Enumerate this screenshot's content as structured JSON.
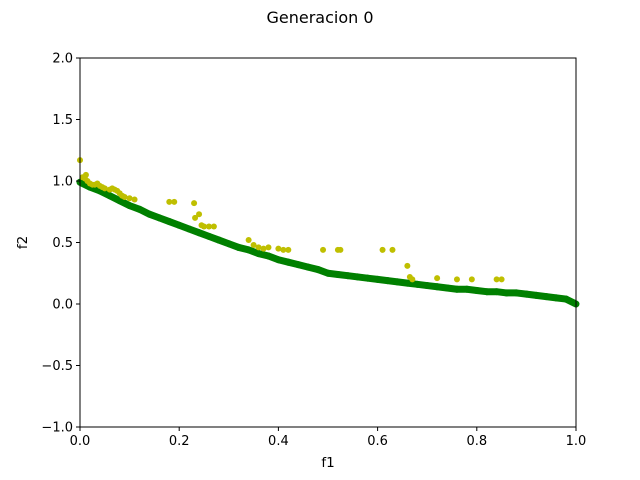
{
  "chart_data": {
    "type": "scatter",
    "title": "Generacion 0",
    "xlabel": "f1",
    "ylabel": "f2",
    "xlim": [
      0.0,
      1.0
    ],
    "ylim": [
      -1.0,
      2.0
    ],
    "xticks": [
      0.0,
      0.2,
      0.4,
      0.6,
      0.8,
      1.0
    ],
    "xtick_labels": [
      "0.0",
      "0.2",
      "0.4",
      "0.6",
      "0.8",
      "1.0"
    ],
    "yticks": [
      -1.0,
      -0.5,
      0.0,
      0.5,
      1.0,
      1.5,
      2.0
    ],
    "ytick_labels": [
      "−1.0",
      "−0.5",
      "0.0",
      "0.5",
      "1.0",
      "1.5",
      "2.0"
    ],
    "grid": false,
    "series": [
      {
        "color": "#008000",
        "marker": "dense-line",
        "x": [
          0.0,
          0.02,
          0.04,
          0.06,
          0.08,
          0.1,
          0.12,
          0.14,
          0.16,
          0.18,
          0.2,
          0.22,
          0.24,
          0.26,
          0.28,
          0.3,
          0.32,
          0.34,
          0.36,
          0.38,
          0.4,
          0.42,
          0.44,
          0.46,
          0.48,
          0.5,
          0.52,
          0.54,
          0.56,
          0.58,
          0.6,
          0.62,
          0.64,
          0.66,
          0.68,
          0.7,
          0.72,
          0.74,
          0.76,
          0.78,
          0.8,
          0.82,
          0.84,
          0.86,
          0.88,
          0.9,
          0.92,
          0.94,
          0.96,
          0.98,
          1.0
        ],
        "y": [
          0.99,
          0.95,
          0.92,
          0.88,
          0.84,
          0.8,
          0.77,
          0.73,
          0.7,
          0.67,
          0.64,
          0.61,
          0.58,
          0.55,
          0.52,
          0.49,
          0.46,
          0.44,
          0.41,
          0.39,
          0.36,
          0.34,
          0.32,
          0.3,
          0.28,
          0.25,
          0.24,
          0.23,
          0.22,
          0.21,
          0.2,
          0.19,
          0.18,
          0.17,
          0.16,
          0.15,
          0.14,
          0.13,
          0.12,
          0.12,
          0.11,
          0.1,
          0.1,
          0.09,
          0.09,
          0.08,
          0.07,
          0.06,
          0.05,
          0.04,
          0.0
        ]
      },
      {
        "color": "#bfbf00",
        "marker": "o",
        "x": [
          0.0,
          0.005,
          0.01,
          0.012,
          0.015,
          0.02,
          0.025,
          0.03,
          0.035,
          0.04,
          0.045,
          0.05,
          0.06,
          0.065,
          0.07,
          0.075,
          0.08,
          0.085,
          0.09,
          0.1,
          0.11,
          0.18,
          0.19,
          0.23,
          0.232,
          0.24,
          0.245,
          0.25,
          0.26,
          0.27,
          0.34,
          0.35,
          0.36,
          0.37,
          0.38,
          0.4,
          0.41,
          0.42,
          0.49,
          0.52,
          0.525,
          0.61,
          0.63,
          0.66,
          0.665,
          0.67,
          0.72,
          0.76,
          0.79,
          0.84,
          0.85
        ],
        "y": [
          1.17,
          1.03,
          1.02,
          1.05,
          1.0,
          0.98,
          0.97,
          0.97,
          0.98,
          0.96,
          0.95,
          0.94,
          0.93,
          0.94,
          0.93,
          0.92,
          0.9,
          0.88,
          0.87,
          0.86,
          0.85,
          0.83,
          0.83,
          0.82,
          0.7,
          0.73,
          0.64,
          0.63,
          0.63,
          0.63,
          0.52,
          0.48,
          0.46,
          0.45,
          0.46,
          0.45,
          0.44,
          0.44,
          0.44,
          0.44,
          0.44,
          0.44,
          0.44,
          0.31,
          0.22,
          0.2,
          0.21,
          0.2,
          0.2,
          0.2,
          0.2
        ]
      }
    ]
  }
}
